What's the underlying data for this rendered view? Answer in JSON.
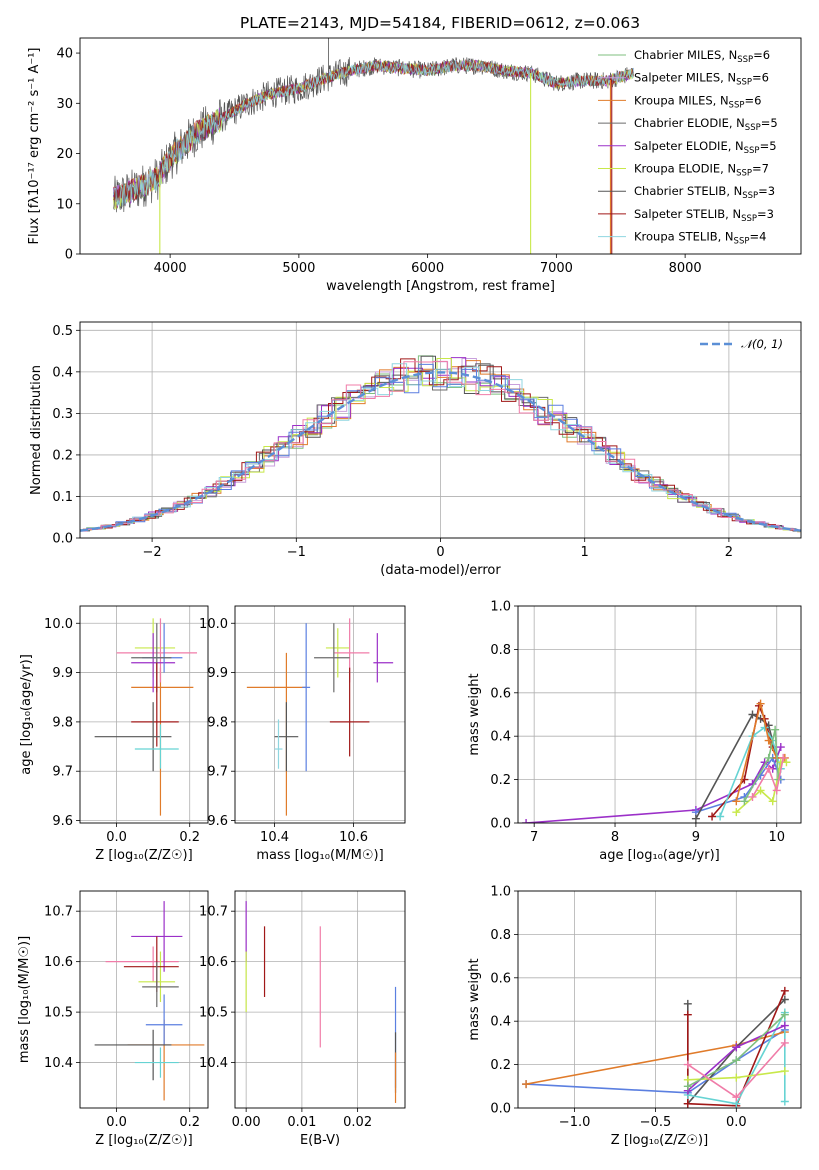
{
  "title": "PLATE=2143, MJD=54184, FIBERID=0612, z=0.063",
  "colors": {
    "chabrier_miles": "#7fbf7f",
    "salpeter_miles": "#c9a0dc",
    "kroupa_miles": "#e07b2a",
    "chabrier_elodie": "#6b6b6b",
    "salpeter_elodie": "#9b30c8",
    "kroupa_elodie": "#c8e84a",
    "chabrier_stelib": "#555555",
    "salpeter_stelib": "#a01818",
    "kroupa_stelib": "#8fd6e0",
    "extra_blue": "#5b7fe0",
    "extra_pink": "#f07ca8",
    "extra_teal": "#66d3d3",
    "normal": "#5b8fd6"
  },
  "chart_data": [
    {
      "id": "spectrum",
      "type": "line",
      "xlabel": "wavelength [Angstrom, rest frame]",
      "ylabel": "Flux [fλ10⁻¹⁷ erg cm⁻² s⁻¹ A⁻¹]",
      "xlim": [
        3300,
        8900
      ],
      "ylim": [
        0,
        43
      ],
      "xticks": [
        4000,
        5000,
        6000,
        7000,
        8000
      ],
      "yticks": [
        0,
        10,
        20,
        30,
        40
      ],
      "continuum": {
        "x": [
          3560,
          3700,
          3900,
          4000,
          4200,
          4400,
          4600,
          4800,
          5000,
          5200,
          5400,
          5600,
          5800,
          6000,
          6200,
          6400,
          6600,
          6800,
          7000,
          7200,
          7400,
          7600,
          7800,
          8000,
          8200,
          8400,
          8600,
          8900
        ],
        "y": [
          11,
          12.5,
          15,
          19,
          24,
          27,
          30,
          32,
          33,
          35,
          36.5,
          37.5,
          37,
          36.5,
          37.5,
          37.5,
          36.5,
          36,
          34,
          34.5,
          34.5,
          36,
          35,
          33.5,
          33,
          32.5,
          31,
          28
        ]
      },
      "legend": [
        {
          "label": "Chabrier MILES, N",
          "sub": "SSP",
          "suffix": "=6",
          "color": "#7fbf7f"
        },
        {
          "label": "Salpeter MILES, N",
          "sub": "SSP",
          "suffix": "=6",
          "color": "#c9a0dc"
        },
        {
          "label": "Kroupa MILES, N",
          "sub": "SSP",
          "suffix": "=6",
          "color": "#e07b2a"
        },
        {
          "label": "Chabrier ELODIE, N",
          "sub": "SSP",
          "suffix": "=5",
          "color": "#6b6b6b"
        },
        {
          "label": "Salpeter ELODIE, N",
          "sub": "SSP",
          "suffix": "=5",
          "color": "#9b30c8"
        },
        {
          "label": "Kroupa ELODIE, N",
          "sub": "SSP",
          "suffix": "=7",
          "color": "#c8e84a"
        },
        {
          "label": "Chabrier STELIB, N",
          "sub": "SSP",
          "suffix": "=3",
          "color": "#555555"
        },
        {
          "label": "Salpeter STELIB, N",
          "sub": "SSP",
          "suffix": "=3",
          "color": "#a01818"
        },
        {
          "label": "Kroupa STELIB, N",
          "sub": "SSP",
          "suffix": "=4",
          "color": "#8fd6e0"
        }
      ]
    },
    {
      "id": "residuals",
      "type": "histogram",
      "xlabel": "(data-model)/error",
      "ylabel": "Normed distribution",
      "xlim": [
        -2.5,
        2.5
      ],
      "ylim": [
        0,
        0.52
      ],
      "xticks": [
        -2,
        -1,
        0,
        1,
        2
      ],
      "yticks": [
        0.0,
        0.1,
        0.2,
        0.3,
        0.4,
        0.5
      ],
      "grid": true,
      "legend_label": "𝒩(0, 1)",
      "legend_position": "top-right"
    },
    {
      "id": "age_vs_Z",
      "type": "errorbar",
      "xlabel": "Z [log₁₀(Z/Z☉)]",
      "ylabel": "age  [log₁₀(age/yr)]",
      "xlim": [
        -0.1,
        0.25
      ],
      "ylim": [
        9.595,
        10.035
      ],
      "xticks": [
        0.0,
        0.2
      ],
      "yticks": [
        9.6,
        9.7,
        9.8,
        9.9,
        10.0
      ],
      "grid": true,
      "points": [
        {
          "x": 0.12,
          "xerr": [
            0.08,
            0.09
          ],
          "y": 9.87,
          "yerr": [
            0.26,
            0.04
          ],
          "color": "#e07b2a"
        },
        {
          "x": 0.1,
          "xerr": [
            0.05,
            0.06
          ],
          "y": 9.95,
          "yerr": [
            0.06,
            0.06
          ],
          "color": "#c8e84a"
        },
        {
          "x": 0.12,
          "xerr": [
            0.12,
            0.1
          ],
          "y": 9.94,
          "yerr": [
            0.06,
            0.07
          ],
          "color": "#f07ca8"
        },
        {
          "x": 0.1,
          "xerr": [
            0.06,
            0.06
          ],
          "y": 9.92,
          "yerr": [
            0.06,
            0.06
          ],
          "color": "#9b30c8"
        },
        {
          "x": 0.13,
          "xerr": [
            0.06,
            0.05
          ],
          "y": 9.93,
          "yerr": [
            0.03,
            0.07
          ],
          "color": "#5b7fe0"
        },
        {
          "x": 0.11,
          "xerr": [
            0.07,
            0.04
          ],
          "y": 9.93,
          "yerr": [
            0.07,
            0.07
          ],
          "color": "#6b6b6b"
        },
        {
          "x": 0.11,
          "xerr": [
            0.07,
            0.06
          ],
          "y": 9.8,
          "yerr": [
            0.05,
            0.12
          ],
          "color": "#a01818"
        },
        {
          "x": 0.1,
          "xerr": [
            0.16,
            0.05
          ],
          "y": 9.77,
          "yerr": [
            0.07,
            0.07
          ],
          "color": "#555555"
        },
        {
          "x": 0.12,
          "xerr": [
            0.07,
            0.05
          ],
          "y": 9.745,
          "yerr": [
            0.04,
            0.05
          ],
          "color": "#66d3d3"
        }
      ]
    },
    {
      "id": "age_vs_mass",
      "type": "errorbar",
      "xlabel": "mass [log₁₀(M/M☉)]",
      "ylabel": "",
      "xlim": [
        10.3,
        10.73
      ],
      "ylim": [
        9.595,
        10.035
      ],
      "xticks": [
        10.4,
        10.6
      ],
      "yticks": [
        9.6,
        9.7,
        9.8,
        9.9,
        10.0
      ],
      "grid": true,
      "points": [
        {
          "x": 10.43,
          "xerr": [
            0.1,
            0.05
          ],
          "y": 9.87,
          "yerr": [
            0.26,
            0.07
          ],
          "color": "#e07b2a"
        },
        {
          "x": 10.56,
          "xerr": [
            0.03,
            0.03
          ],
          "y": 9.95,
          "yerr": [
            0.06,
            0.04
          ],
          "color": "#c8e84a"
        },
        {
          "x": 10.59,
          "xerr": [
            0.04,
            0.05
          ],
          "y": 9.94,
          "yerr": [
            0.06,
            0.07
          ],
          "color": "#f07ca8"
        },
        {
          "x": 10.66,
          "xerr": [
            0.01,
            0.04
          ],
          "y": 9.92,
          "yerr": [
            0.04,
            0.06
          ],
          "color": "#9b30c8"
        },
        {
          "x": 10.48,
          "xerr": [
            0.01,
            0.01
          ],
          "y": 9.87,
          "yerr": [
            0.17,
            0.13
          ],
          "color": "#5b7fe0"
        },
        {
          "x": 10.55,
          "xerr": [
            0.05,
            0.04
          ],
          "y": 9.93,
          "yerr": [
            0.07,
            0.07
          ],
          "color": "#6b6b6b"
        },
        {
          "x": 10.59,
          "xerr": [
            0.05,
            0.05
          ],
          "y": 9.8,
          "yerr": [
            0.07,
            0.11
          ],
          "color": "#a01818"
        },
        {
          "x": 10.43,
          "xerr": [
            0.03,
            0.03
          ],
          "y": 9.77,
          "yerr": [
            0.07,
            0.07
          ],
          "color": "#555555"
        },
        {
          "x": 10.41,
          "xerr": [
            0.01,
            0.01
          ],
          "y": 9.745,
          "yerr": [
            0.04,
            0.06
          ],
          "color": "#8fd6e0"
        }
      ]
    },
    {
      "id": "weights_vs_age",
      "type": "line",
      "xlabel": "age  [log₁₀(age/yr)]",
      "ylabel": "mass weight",
      "xlim": [
        6.8,
        10.3
      ],
      "ylim": [
        0,
        1
      ],
      "xticks": [
        7,
        8,
        9,
        10
      ],
      "yticks": [
        0.0,
        0.2,
        0.4,
        0.6,
        0.8,
        1.0
      ],
      "grid": true,
      "series": [
        {
          "color": "#9b30c8",
          "x": [
            6.9,
            9.0,
            9.7,
            9.85,
            9.95,
            10.05
          ],
          "y": [
            0.0,
            0.06,
            0.18,
            0.28,
            0.25,
            0.35
          ]
        },
        {
          "color": "#5b7fe0",
          "x": [
            9.0,
            9.6,
            9.8,
            9.95,
            10.05
          ],
          "y": [
            0.05,
            0.12,
            0.22,
            0.3,
            0.2
          ]
        },
        {
          "color": "#555555",
          "x": [
            9.0,
            9.7,
            9.8,
            9.9,
            10.0
          ],
          "y": [
            0.02,
            0.5,
            0.48,
            0.45,
            0.3
          ]
        },
        {
          "color": "#a01818",
          "x": [
            9.2,
            9.6,
            9.78,
            9.85,
            9.95
          ],
          "y": [
            0.03,
            0.2,
            0.54,
            0.48,
            0.35
          ]
        },
        {
          "color": "#66d3d3",
          "x": [
            9.3,
            9.7,
            9.85,
            9.95,
            10.05
          ],
          "y": [
            0.03,
            0.4,
            0.44,
            0.38,
            0.25
          ]
        },
        {
          "color": "#e07b2a",
          "x": [
            9.5,
            9.8,
            9.9,
            10.0,
            10.1
          ],
          "y": [
            0.1,
            0.55,
            0.38,
            0.3,
            0.3
          ]
        },
        {
          "color": "#c8e84a",
          "x": [
            9.5,
            9.8,
            9.95,
            10.05,
            10.12
          ],
          "y": [
            0.05,
            0.15,
            0.1,
            0.28,
            0.28
          ]
        },
        {
          "color": "#7fbf7f",
          "x": [
            9.6,
            9.9,
            9.98,
            10.02
          ],
          "y": [
            0.1,
            0.3,
            0.43,
            0.2
          ]
        },
        {
          "color": "#f07ca8",
          "x": [
            9.7,
            9.9,
            10.0,
            10.08
          ],
          "y": [
            0.12,
            0.25,
            0.15,
            0.3
          ]
        }
      ]
    },
    {
      "id": "mass_vs_Z",
      "type": "errorbar",
      "xlabel": "Z [log₁₀(Z/Z☉)]",
      "ylabel": "mass [log₁₀(M/M☉)]",
      "xlim": [
        -0.1,
        0.25
      ],
      "ylim": [
        10.31,
        10.74
      ],
      "xticks": [
        0.0,
        0.2
      ],
      "yticks": [
        10.4,
        10.5,
        10.6,
        10.7
      ],
      "grid": true,
      "points": [
        {
          "x": 0.13,
          "xerr": [
            0.1,
            0.11
          ],
          "y": 10.435,
          "yerr": [
            0.11,
            0.05
          ],
          "color": "#e07b2a"
        },
        {
          "x": 0.1,
          "xerr": [
            0.13,
            0.07
          ],
          "y": 10.6,
          "yerr": [
            0.04,
            0.03
          ],
          "color": "#f07ca8"
        },
        {
          "x": 0.13,
          "xerr": [
            0.09,
            0.05
          ],
          "y": 10.65,
          "yerr": [
            0.07,
            0.07
          ],
          "color": "#9b30c8"
        },
        {
          "x": 0.12,
          "xerr": [
            0.06,
            0.04
          ],
          "y": 10.56,
          "yerr": [
            0.04,
            0.06
          ],
          "color": "#c8e84a"
        },
        {
          "x": 0.11,
          "xerr": [
            0.09,
            0.06
          ],
          "y": 10.59,
          "yerr": [
            0.05,
            0.06
          ],
          "color": "#a01818"
        },
        {
          "x": 0.11,
          "xerr": [
            0.04,
            0.06
          ],
          "y": 10.55,
          "yerr": [
            0.04,
            0.05
          ],
          "color": "#6b6b6b"
        },
        {
          "x": 0.13,
          "xerr": [
            0.05,
            0.05
          ],
          "y": 10.475,
          "yerr": [
            0.04,
            0.06
          ],
          "color": "#5b7fe0"
        },
        {
          "x": 0.1,
          "xerr": [
            0.16,
            0.05
          ],
          "y": 10.435,
          "yerr": [
            0.07,
            0.03
          ],
          "color": "#555555"
        },
        {
          "x": 0.12,
          "xerr": [
            0.07,
            0.05
          ],
          "y": 10.4,
          "yerr": [
            0.03,
            0.03
          ],
          "color": "#66d3d3"
        }
      ]
    },
    {
      "id": "mass_vs_ebv",
      "type": "errorbar",
      "xlabel": "E(B-V)",
      "ylabel": "",
      "xlim": [
        -0.002,
        0.0285
      ],
      "ylim": [
        10.31,
        10.74
      ],
      "xticks": [
        0.0,
        0.01,
        0.02
      ],
      "xticklabels": [
        "0.00",
        "0.01",
        "0.02"
      ],
      "yticks": [
        10.4,
        10.5,
        10.6,
        10.7
      ],
      "grid": true,
      "points": [
        {
          "x": 0.0,
          "y": 10.66,
          "yerr": [
            0.06,
            0.06
          ],
          "color": "#9b30c8"
        },
        {
          "x": 0.0,
          "y": 10.56,
          "yerr": [
            0.06,
            0.06
          ],
          "color": "#c8e84a"
        },
        {
          "x": 0.0033,
          "y": 10.6,
          "yerr": [
            0.07,
            0.07
          ],
          "color": "#a01818"
        },
        {
          "x": 0.0133,
          "y": 10.55,
          "yerr": [
            0.12,
            0.12
          ],
          "color": "#f07ca8"
        },
        {
          "x": 0.0268,
          "y": 10.45,
          "yerr": [
            0.1,
            0.1
          ],
          "color": "#5b7fe0"
        },
        {
          "x": 0.0268,
          "y": 10.4,
          "yerr": [
            0.06,
            0.06
          ],
          "color": "#555555"
        },
        {
          "x": 0.0268,
          "y": 10.37,
          "yerr": [
            0.05,
            0.05
          ],
          "color": "#e07b2a"
        }
      ]
    },
    {
      "id": "weights_vs_Z",
      "type": "line",
      "xlabel": "Z [log₁₀(Z/Z☉)]",
      "ylabel": "mass weight",
      "xlim": [
        -1.35,
        0.4
      ],
      "ylim": [
        0,
        1
      ],
      "xticks": [
        -1.0,
        -0.5,
        0.0
      ],
      "xticklabels": [
        "−1.0",
        "−0.5",
        "0.0"
      ],
      "yticks": [
        0.0,
        0.2,
        0.4,
        0.6,
        0.8,
        1.0
      ],
      "grid": true,
      "series": [
        {
          "color": "#5b7fe0",
          "x": [
            -1.3,
            -0.3,
            0.0,
            0.3
          ],
          "y": [
            0.11,
            0.07,
            0.22,
            0.36
          ]
        },
        {
          "color": "#e07b2a",
          "x": [
            -1.3,
            0.0,
            0.3
          ],
          "y": [
            0.11,
            0.29,
            0.35
          ]
        },
        {
          "color": "#555555",
          "x": [
            -0.3,
            -0.3,
            0.0,
            0.3
          ],
          "y": [
            0.48,
            0.02,
            0.28,
            0.5
          ]
        },
        {
          "color": "#a01818",
          "x": [
            -0.3,
            -0.3,
            0.0,
            0.3
          ],
          "y": [
            0.43,
            0.02,
            0.01,
            0.54
          ]
        },
        {
          "color": "#66d3d3",
          "x": [
            -0.3,
            0.0,
            0.3,
            0.3
          ],
          "y": [
            0.06,
            0.02,
            0.44,
            0.03
          ]
        },
        {
          "color": "#9b30c8",
          "x": [
            -0.3,
            0.0,
            0.3
          ],
          "y": [
            0.08,
            0.28,
            0.38
          ]
        },
        {
          "color": "#c8e84a",
          "x": [
            -0.3,
            0.0,
            0.3
          ],
          "y": [
            0.13,
            0.14,
            0.17
          ]
        },
        {
          "color": "#7fbf7f",
          "x": [
            -0.3,
            0.0,
            0.3
          ],
          "y": [
            0.1,
            0.22,
            0.43
          ]
        },
        {
          "color": "#f07ca8",
          "x": [
            -0.3,
            0.0,
            0.3
          ],
          "y": [
            0.2,
            0.05,
            0.3
          ]
        }
      ]
    }
  ]
}
